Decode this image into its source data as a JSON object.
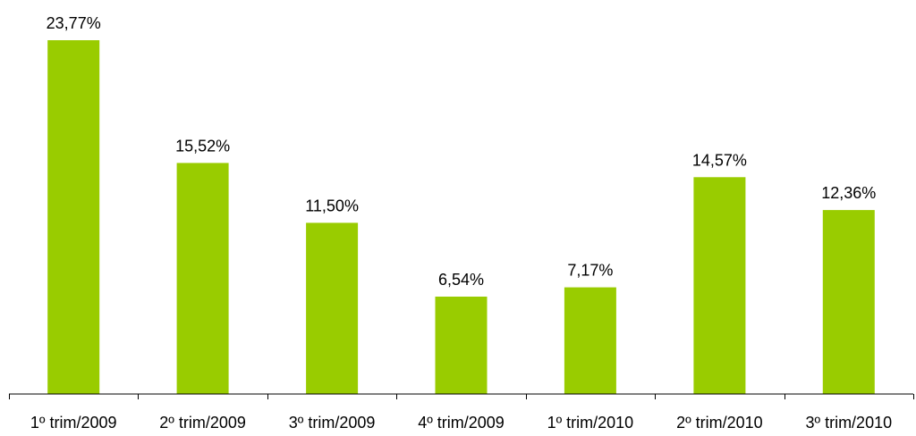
{
  "chart_data": {
    "type": "bar",
    "categories": [
      "1º trim/2009",
      "2º trim/2009",
      "3º trim/2009",
      "4º trim/2009",
      "1º trim/2010",
      "2º trim/2010",
      "3º trim/2010"
    ],
    "values": [
      23.77,
      15.52,
      11.5,
      6.54,
      7.17,
      14.57,
      12.36
    ],
    "data_labels": [
      "23,77%",
      "15,52%",
      "11,50%",
      "6,54%",
      "7,17%",
      "14,57%",
      "12,36%"
    ],
    "title": "",
    "xlabel": "",
    "ylabel": "",
    "ylim": [
      0,
      23.77
    ],
    "grid": false,
    "bar_color": "#99cc00",
    "axis_color": "#000000"
  }
}
